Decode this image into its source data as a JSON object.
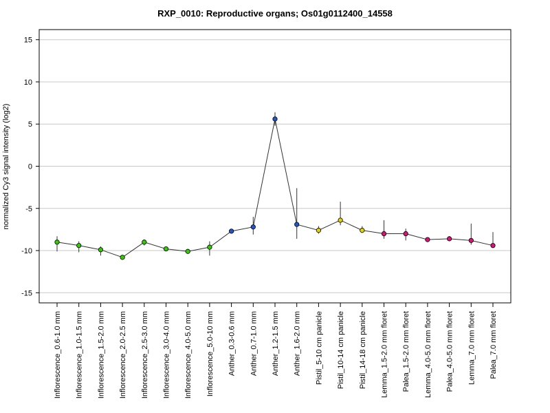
{
  "chart_data": {
    "type": "line",
    "title": "RXP_0010: Reproductive organs; Os01g0112400_14558",
    "xlabel": "",
    "ylabel": "normalized Cy3 signal intensity (log2)",
    "ylim": [
      -16.2,
      16.2
    ],
    "yticks": [
      -15,
      -10,
      -5,
      0,
      5,
      10,
      15
    ],
    "grid": "horizontal",
    "categories": [
      "Inflorescence_0.6-1.0 mm",
      "Inflorescence_1.0-1.5 mm",
      "Inflorescence_1.5-2.0 mm",
      "Inflorescence_2.0-2.5 mm",
      "Inflorescence_2.5-3.0 mm",
      "Inflorescence_3.0-4.0 mm",
      "Inflorescence_4.0-5.0 mm",
      "Inflorescence_5.0-10 mm",
      "Anther_0.3-0.6 mm",
      "Anther_0.7-1.0 mm",
      "Anther_1.2-1.5 mm",
      "Anther_1.6-2.0 mm",
      "Pistil_5-10 cm panicle",
      "Pistil_10-14 cm panicle",
      "Pistil_14-18 cm panicle",
      "Lemma_1.5-2.0 mm floret",
      "Palea_1.5-2.0 mm floret",
      "Lemma_4.0-5.0 mm floret",
      "Palea_4.0-5.0 mm floret",
      "Lemma_7.0 mm floret",
      "Palea_7.0 mm floret"
    ],
    "values": [
      -9.0,
      -9.4,
      -9.9,
      -10.8,
      -9.0,
      -9.8,
      -10.1,
      -9.6,
      -7.7,
      -7.2,
      5.6,
      -6.9,
      -7.6,
      -6.4,
      -7.6,
      -8.0,
      -8.0,
      -8.7,
      -8.6,
      -8.8,
      -9.4
    ],
    "error_low": [
      -10.1,
      -10.2,
      -10.6,
      -11.1,
      -9.4,
      -10.0,
      -10.3,
      -10.6,
      -7.8,
      -8.1,
      4.8,
      -8.6,
      -8.0,
      -7.0,
      -7.9,
      -8.6,
      -8.8,
      -8.9,
      -8.8,
      -9.3,
      -9.7
    ],
    "error_high": [
      -8.3,
      -8.9,
      -9.5,
      -10.5,
      -8.7,
      -9.6,
      -9.9,
      -8.9,
      -7.6,
      -6.0,
      6.4,
      -2.6,
      -7.1,
      -4.2,
      -7.1,
      -6.4,
      -7.4,
      -8.5,
      -8.3,
      -6.8,
      -7.8
    ],
    "point_colors": [
      "#33cc00",
      "#33cc00",
      "#33cc00",
      "#33cc00",
      "#33cc00",
      "#33cc00",
      "#33cc00",
      "#33cc00",
      "#2255cc",
      "#2255cc",
      "#2255cc",
      "#2255cc",
      "#e6d200",
      "#e6d200",
      "#e6d200",
      "#dd1177",
      "#dd1177",
      "#dd1177",
      "#dd1177",
      "#dd1177",
      "#dd1177"
    ],
    "line_color": "#333333",
    "grid_color": "#c8c8c8"
  }
}
